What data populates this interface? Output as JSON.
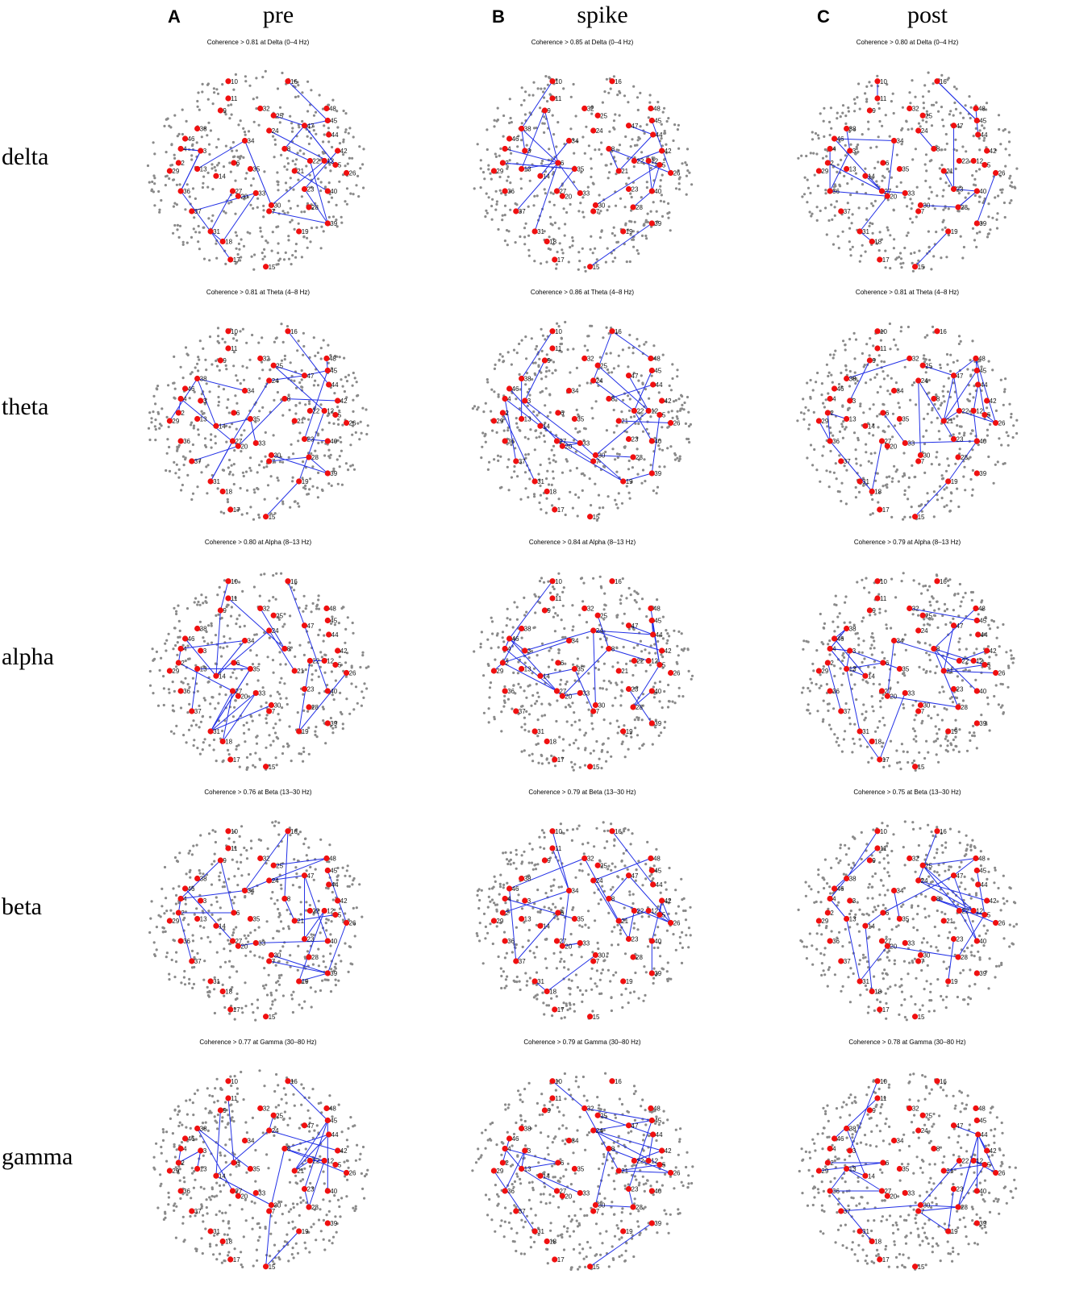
{
  "columns": [
    {
      "letter": "A",
      "label": "pre"
    },
    {
      "letter": "B",
      "label": "spike"
    },
    {
      "letter": "C",
      "label": "post"
    }
  ],
  "rows": [
    "delta",
    "theta",
    "alpha",
    "beta",
    "gamma"
  ],
  "panels": [
    [
      "Coherence > 0.81 at Delta (0–4 Hz)",
      "Coherence > 0.85 at Delta (0–4 Hz)",
      "Coherence > 0.80 at Delta (0–4 Hz)"
    ],
    [
      "Coherence > 0.81 at Theta (4–8 Hz)",
      "Coherence > 0.86 at Theta (4–8 Hz)",
      "Coherence > 0.81 at Theta (4–8 Hz)"
    ],
    [
      "Coherence > 0.80 at Alpha (8–13 Hz)",
      "Coherence > 0.84 at Alpha (8–13 Hz)",
      "Coherence > 0.79 at Alpha (8–13 Hz)"
    ],
    [
      "Coherence > 0.76 at Beta (13–30 Hz)",
      "Coherence > 0.79 at Beta (13–30 Hz)",
      "Coherence > 0.75 at Beta (13–30 Hz)"
    ],
    [
      "Coherence > 0.77 at Gamma (30–80 Hz)",
      "Coherence > 0.79 at Gamma (30–80 Hz)",
      "Coherence > 0.78 at Gamma (30–80 Hz)"
    ]
  ],
  "nodes": [
    "10",
    "16",
    "11",
    "32",
    "9",
    "48",
    "45",
    "25",
    "47",
    "24",
    "44",
    "34",
    "38",
    "3",
    "4",
    "2",
    "6",
    "35",
    "8",
    "22",
    "12",
    "5",
    "13",
    "21",
    "14",
    "29",
    "26",
    "27",
    "33",
    "20",
    "30",
    "40",
    "7",
    "37",
    "36",
    "28",
    "18",
    "39",
    "19",
    "17",
    "15",
    "31",
    "46",
    "42",
    "23"
  ]
}
